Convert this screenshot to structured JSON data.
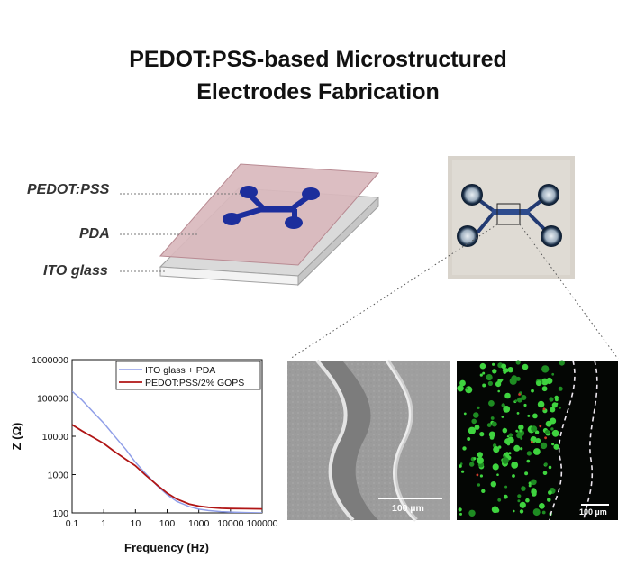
{
  "title": {
    "line1": "PEDOT:PSS-based Microstructured",
    "line2": "Electrodes Fabrication"
  },
  "layers": [
    {
      "label": "PEDOT:PSS"
    },
    {
      "label": "PDA"
    },
    {
      "label": "ITO glass"
    }
  ],
  "micrographs": {
    "sem_scale": "100 µm",
    "fluor_scale": "100 µm"
  },
  "colors": {
    "ito_pda": "#8f9ee8",
    "pedot_gops": "#b01515",
    "electrode": "#1c2e9c",
    "top_plate": "#d9b8bd"
  },
  "chart_data": {
    "type": "line",
    "title": "",
    "xlabel": "Frequency (Hz)",
    "ylabel": "Z (Ω)",
    "xscale": "log",
    "yscale": "log",
    "xlim": [
      0.1,
      100000
    ],
    "ylim": [
      100,
      1000000
    ],
    "xticks": [
      "0.1",
      "1",
      "10",
      "100",
      "1000",
      "10000",
      "100000"
    ],
    "yticks": [
      "100",
      "1000",
      "10000",
      "100000",
      "1000000"
    ],
    "legend_position": "top-right",
    "series": [
      {
        "name": "ITO glass + PDA",
        "x": [
          0.1,
          0.2,
          0.5,
          1,
          2,
          5,
          10,
          20,
          50,
          100,
          200,
          500,
          1000,
          2000,
          5000,
          10000,
          30000,
          100000
        ],
        "y": [
          150000,
          90000,
          40000,
          22000,
          11000,
          4500,
          2100,
          1100,
          500,
          300,
          200,
          145,
          125,
          115,
          108,
          105,
          102,
          100
        ]
      },
      {
        "name": "PEDOT:PSS/2% GOPS",
        "x": [
          0.1,
          0.2,
          0.5,
          1,
          2,
          5,
          10,
          20,
          50,
          100,
          200,
          500,
          1000,
          2000,
          5000,
          10000,
          30000,
          100000
        ],
        "y": [
          20000,
          14000,
          9000,
          6500,
          4200,
          2500,
          1700,
          1000,
          520,
          330,
          230,
          170,
          150,
          140,
          132,
          130,
          128,
          127
        ]
      }
    ]
  }
}
